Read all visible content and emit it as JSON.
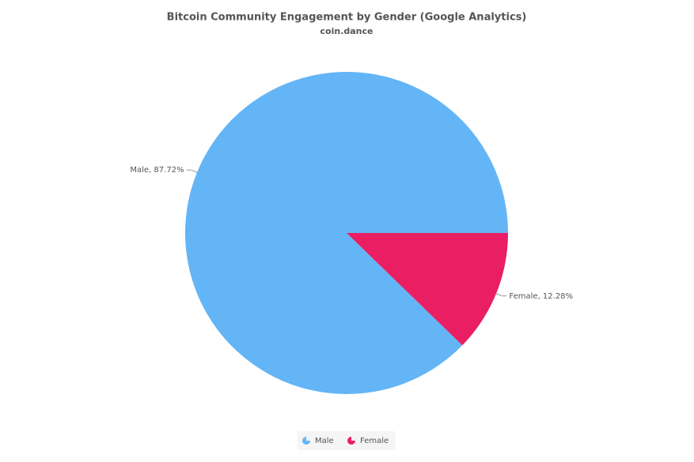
{
  "chart_data": {
    "type": "pie",
    "title": "Bitcoin Community Engagement by Gender (Google Analytics)",
    "subtitle": "coin.dance",
    "categories": [
      "Male",
      "Female"
    ],
    "values": [
      87.72,
      12.28
    ],
    "value_labels": [
      "Male, 87.72%",
      "Female, 12.28%"
    ],
    "colors": [
      "#64b5f6",
      "#e91e63"
    ]
  }
}
